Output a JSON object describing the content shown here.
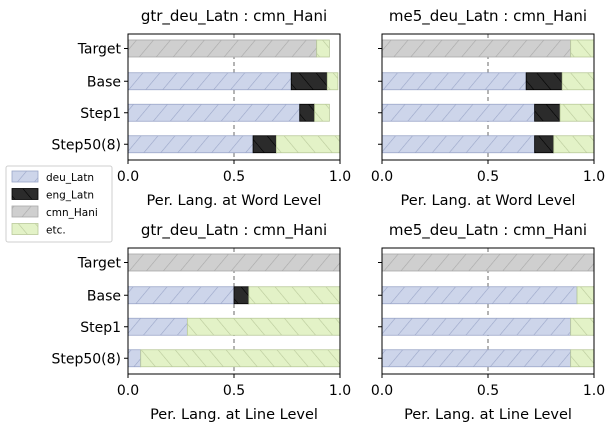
{
  "legend": {
    "items": [
      {
        "label": "deu_Latn",
        "color": "#cdd5ea",
        "hatch": "fwd",
        "edge": "#9aa6c8"
      },
      {
        "label": "eng_Latn",
        "color": "#2b2b2b",
        "hatch": "bwd",
        "edge": "#000000"
      },
      {
        "label": "cmn_Hani",
        "color": "#cfcfcf",
        "hatch": "fwd",
        "edge": "#a8a8a8"
      },
      {
        "label": "etc.",
        "color": "#e3f2c7",
        "hatch": "bwd",
        "edge": "#b9c99a"
      }
    ]
  },
  "chart_data": [
    {
      "type": "bar",
      "orientation": "horizontal",
      "stacked": true,
      "title": "gtr_deu_Latn : cmn_Hani",
      "xlabel": "Per. Lang. at Word Level",
      "xlim": [
        0,
        1
      ],
      "xticks": [
        "0.0",
        "0.5",
        "1.0"
      ],
      "categories": [
        "Target",
        "Base",
        "Step1",
        "Step50(8)"
      ],
      "show_category_labels": true,
      "series": [
        {
          "name": "deu_Latn",
          "values": [
            0.0,
            0.77,
            0.81,
            0.59
          ]
        },
        {
          "name": "eng_Latn",
          "values": [
            0.0,
            0.17,
            0.07,
            0.11
          ]
        },
        {
          "name": "cmn_Hani",
          "values": [
            0.89,
            0.0,
            0.0,
            0.0
          ]
        },
        {
          "name": "etc.",
          "values": [
            0.06,
            0.05,
            0.07,
            0.3
          ]
        }
      ]
    },
    {
      "type": "bar",
      "orientation": "horizontal",
      "stacked": true,
      "title": "me5_deu_Latn : cmn_Hani",
      "xlabel": "Per. Lang. at Word Level",
      "xlim": [
        0,
        1
      ],
      "xticks": [
        "0.0",
        "0.5",
        "1.0"
      ],
      "categories": [
        "Target",
        "Base",
        "Step1",
        "Step50(8)"
      ],
      "show_category_labels": false,
      "series": [
        {
          "name": "deu_Latn",
          "values": [
            0.0,
            0.68,
            0.72,
            0.72
          ]
        },
        {
          "name": "eng_Latn",
          "values": [
            0.0,
            0.17,
            0.12,
            0.09
          ]
        },
        {
          "name": "cmn_Hani",
          "values": [
            0.89,
            0.0,
            0.0,
            0.0
          ]
        },
        {
          "name": "etc.",
          "values": [
            0.11,
            0.15,
            0.16,
            0.19
          ]
        }
      ]
    },
    {
      "type": "bar",
      "orientation": "horizontal",
      "stacked": true,
      "title": "gtr_deu_Latn : cmn_Hani",
      "xlabel": "Per. Lang. at Line Level",
      "xlim": [
        0,
        1
      ],
      "xticks": [
        "0.0",
        "0.5",
        "1.0"
      ],
      "categories": [
        "Target",
        "Base",
        "Step1",
        "Step50(8)"
      ],
      "show_category_labels": true,
      "series": [
        {
          "name": "deu_Latn",
          "values": [
            0.0,
            0.5,
            0.28,
            0.06
          ]
        },
        {
          "name": "eng_Latn",
          "values": [
            0.0,
            0.07,
            0.0,
            0.0
          ]
        },
        {
          "name": "cmn_Hani",
          "values": [
            1.0,
            0.0,
            0.0,
            0.0
          ]
        },
        {
          "name": "etc.",
          "values": [
            0.0,
            0.43,
            0.72,
            0.94
          ]
        }
      ]
    },
    {
      "type": "bar",
      "orientation": "horizontal",
      "stacked": true,
      "title": "me5_deu_Latn : cmn_Hani",
      "xlabel": "Per. Lang. at Line Level",
      "xlim": [
        0,
        1
      ],
      "xticks": [
        "0.0",
        "0.5",
        "1.0"
      ],
      "categories": [
        "Target",
        "Base",
        "Step1",
        "Step50(8)"
      ],
      "show_category_labels": false,
      "series": [
        {
          "name": "deu_Latn",
          "values": [
            0.0,
            0.92,
            0.89,
            0.89
          ]
        },
        {
          "name": "eng_Latn",
          "values": [
            0.0,
            0.0,
            0.0,
            0.0
          ]
        },
        {
          "name": "cmn_Hani",
          "values": [
            1.0,
            0.0,
            0.0,
            0.0
          ]
        },
        {
          "name": "etc.",
          "values": [
            0.0,
            0.08,
            0.11,
            0.11
          ]
        }
      ]
    }
  ]
}
